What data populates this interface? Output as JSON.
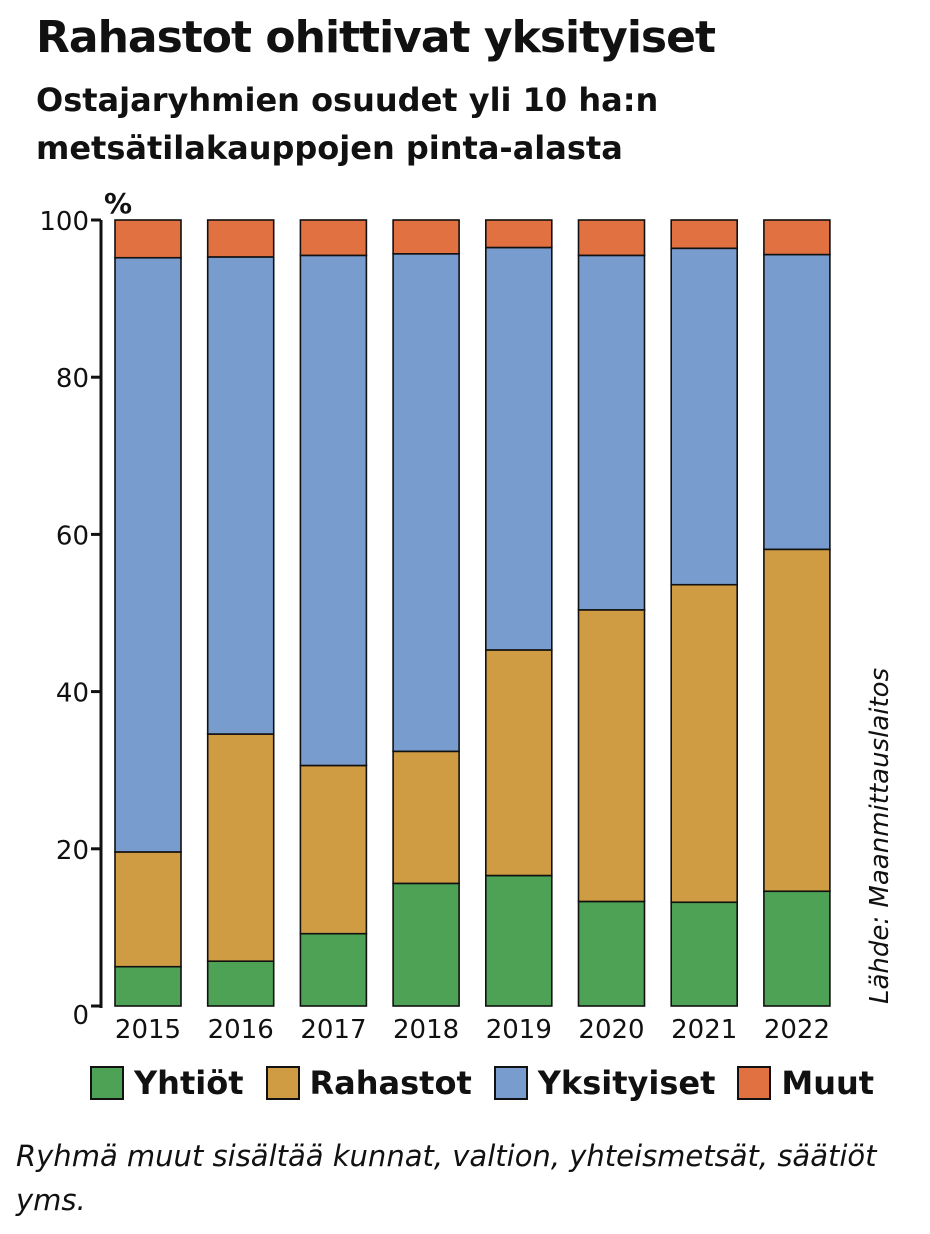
{
  "header": {
    "title": "Rahastot ohittivat yksityiset",
    "subtitle": "Ostajaryhmien osuudet yli 10 ha:n metsätilakauppojen pinta-alasta"
  },
  "source": "Lähde: Maanmittauslaitos",
  "footnote": "Ryhmä muut sisältää kunnat, valtion, yhteismetsät, säätiöt yms.",
  "colors": {
    "Yhtiöt": "#4da256",
    "Rahastot": "#cf9c43",
    "Yksityiset": "#799ccf",
    "Muut": "#e27142"
  },
  "chart_data": {
    "type": "bar",
    "stacked": true,
    "title": "Rahastot ohittivat yksityiset",
    "subtitle": "Ostajaryhmien osuudet yli 10 ha:n metsätilakauppojen pinta-alasta",
    "ylabel": "%",
    "ylim": [
      0,
      100
    ],
    "yticks": [
      0,
      20,
      40,
      60,
      80,
      100
    ],
    "categories": [
      "2015",
      "2016",
      "2017",
      "2018",
      "2019",
      "2020",
      "2021",
      "2022"
    ],
    "legend_position": "bottom",
    "series": [
      {
        "name": "Yhtiöt",
        "values": [
          5,
          5.7,
          9.2,
          15.6,
          16.6,
          13.3,
          13.2,
          14.6
        ]
      },
      {
        "name": "Rahastot",
        "values": [
          14.6,
          28.9,
          21.4,
          16.8,
          28.7,
          37.1,
          40.4,
          43.5
        ]
      },
      {
        "name": "Yksityiset",
        "values": [
          75.6,
          60.7,
          64.9,
          63.3,
          51.2,
          45.1,
          42.8,
          37.5
        ]
      },
      {
        "name": "Muut",
        "values": [
          4.8,
          4.7,
          4.5,
          4.3,
          3.5,
          4.5,
          3.6,
          4.4
        ]
      }
    ]
  }
}
